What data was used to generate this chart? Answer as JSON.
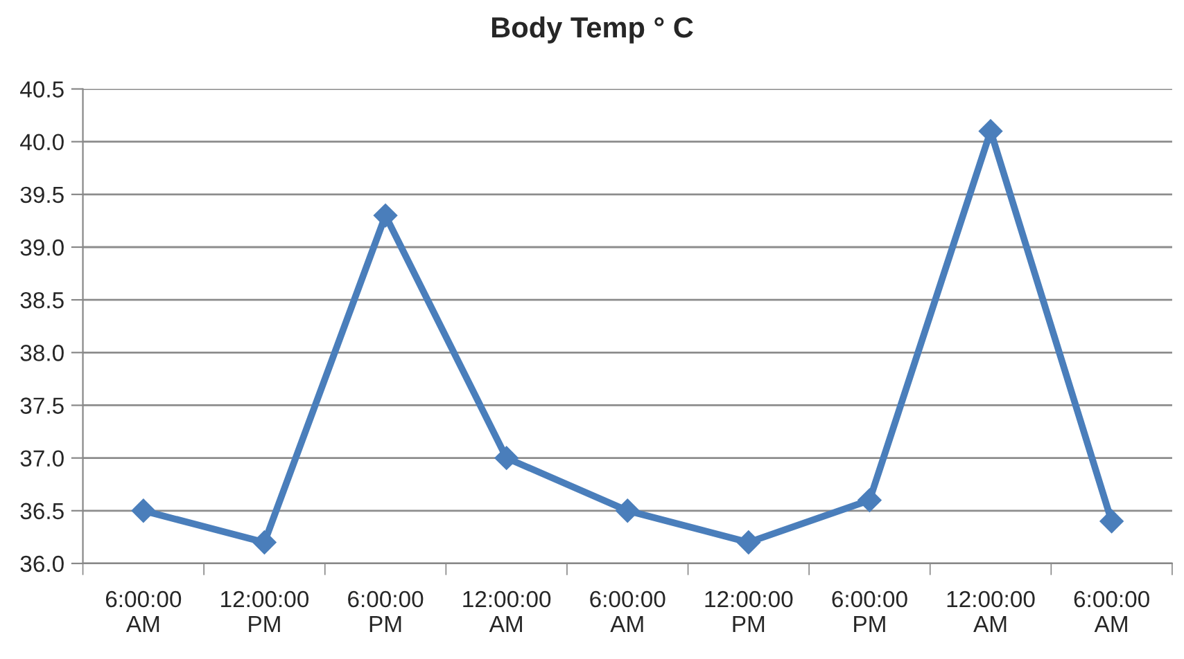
{
  "chart_data": {
    "type": "line",
    "title": "Body Temp ° C",
    "categories": [
      "6:00:00 AM",
      "12:00:00 PM",
      "6:00:00 PM",
      "12:00:00 AM",
      "6:00:00 AM",
      "12:00:00 PM",
      "6:00:00 PM",
      "12:00:00 AM",
      "6:00:00 AM"
    ],
    "series": [
      {
        "color": "#4a7ebb",
        "values": [
          36.5,
          36.2,
          39.3,
          37.0,
          36.5,
          36.2,
          36.6,
          40.1,
          36.4
        ]
      }
    ],
    "ylim": [
      36.0,
      40.5
    ],
    "yticks": [
      {
        "value": 36.0,
        "label": "36.0"
      },
      {
        "value": 36.5,
        "label": "36.5"
      },
      {
        "value": 37.0,
        "label": "37.0"
      },
      {
        "value": 37.5,
        "label": "37.5"
      },
      {
        "value": 38.0,
        "label": "38.0"
      },
      {
        "value": 38.5,
        "label": "38.5"
      },
      {
        "value": 39.0,
        "label": "39.0"
      },
      {
        "value": 39.5,
        "label": "39.5"
      },
      {
        "value": 40.0,
        "label": "40.0"
      },
      {
        "value": 40.5,
        "label": "40.5"
      }
    ],
    "grid": "y",
    "marker": "diamond",
    "line_style": "solid"
  }
}
